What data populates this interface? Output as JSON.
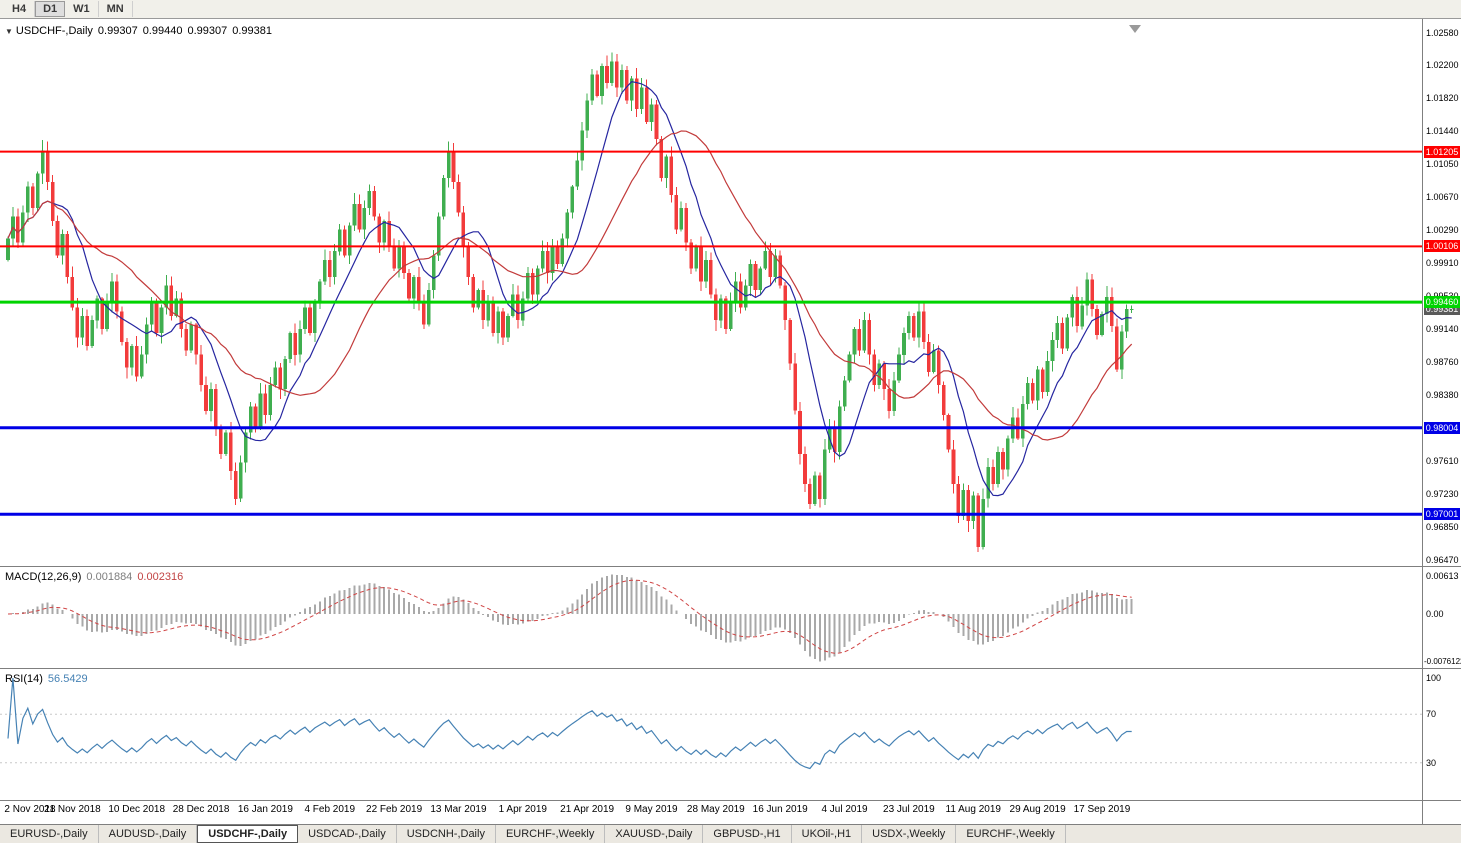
{
  "toolbar": {
    "buttons": [
      "H4",
      "D1",
      "W1",
      "MN"
    ],
    "active": "D1"
  },
  "chart": {
    "collapse_icon": "▼",
    "title": "USDCHF-,Daily",
    "ohlc": {
      "open": "0.99307",
      "high": "0.99440",
      "low": "0.99307",
      "close": "0.99381"
    }
  },
  "price_scale": {
    "ticks": [
      "1.02580",
      "1.02200",
      "1.01820",
      "1.01440",
      "1.01050",
      "1.00670",
      "1.00290",
      "0.99910",
      "0.99530",
      "0.99140",
      "0.98760",
      "0.98380",
      "0.97610",
      "0.97230",
      "0.96850",
      "0.96470"
    ]
  },
  "indicators": {
    "macd": {
      "label": "MACD(12,26,9)",
      "main_value": "0.001884",
      "signal_value": "0.002316",
      "fast": 12,
      "slow": 26,
      "signal": 9,
      "scale_max": "0.00613",
      "scale_zero": "0.00",
      "scale_min": "-0.0076122",
      "histogram_color": "#a9a9a9",
      "signal_color": "#d04545"
    },
    "rsi": {
      "label": "RSI(14)",
      "value": "56.5429",
      "period": 14,
      "levels": [
        70,
        30
      ],
      "scale": [
        "100",
        "70",
        "30"
      ],
      "line_color": "#4682b4"
    }
  },
  "tabs": {
    "items": [
      {
        "label": "EURUSD-,Daily"
      },
      {
        "label": "AUDUSD-,Daily"
      },
      {
        "label": "USDCHF-,Daily",
        "active": true
      },
      {
        "label": "USDCAD-,Daily"
      },
      {
        "label": "USDCNH-,Daily"
      },
      {
        "label": "EURCHF-,Weekly"
      },
      {
        "label": "XAUUSD-,Daily"
      },
      {
        "label": "GBPUSD-,H1"
      },
      {
        "label": "UKOil-,H1"
      },
      {
        "label": "USDX-,Weekly"
      },
      {
        "label": "EURCHF-,Weekly"
      }
    ]
  },
  "colors": {
    "up": "#3fae4f",
    "down": "#f23b3b",
    "background": "#ffffff"
  },
  "chart_data": {
    "type": "candlestick",
    "symbol": "USDCHF",
    "timeframe": "Daily",
    "current_ohlc": {
      "open": 0.99307,
      "high": 0.9944,
      "low": 0.99307,
      "close": 0.99381
    },
    "y_axis": {
      "top": 1.0258,
      "bottom": 0.9647
    },
    "x_labels": [
      "2 Nov 2018",
      "21 Nov 2018",
      "10 Dec 2018",
      "28 Dec 2018",
      "16 Jan 2019",
      "4 Feb 2019",
      "22 Feb 2019",
      "13 Mar 2019",
      "1 Apr 2019",
      "21 Apr 2019",
      "9 May 2019",
      "28 May 2019",
      "16 Jun 2019",
      "4 Jul 2019",
      "23 Jul 2019",
      "11 Aug 2019",
      "29 Aug 2019",
      "17 Sep 2019"
    ],
    "x_label_step": 13,
    "first_open": 0.9995,
    "closes": [
      1.002,
      1.0045,
      1.0015,
      1.005,
      1.008,
      1.0055,
      1.0095,
      1.0122,
      1.0085,
      1.004,
      1.0,
      1.0025,
      0.9975,
      0.994,
      0.9905,
      0.993,
      0.9895,
      0.9925,
      0.995,
      0.9915,
      0.9945,
      0.997,
      0.9935,
      0.99,
      0.987,
      0.9895,
      0.986,
      0.9885,
      0.992,
      0.9945,
      0.991,
      0.994,
      0.9965,
      0.993,
      0.995,
      0.9915,
      0.989,
      0.992,
      0.9885,
      0.985,
      0.982,
      0.9845,
      0.98,
      0.977,
      0.9795,
      0.975,
      0.9718,
      0.976,
      0.9795,
      0.9825,
      0.98,
      0.984,
      0.9815,
      0.985,
      0.987,
      0.9845,
      0.988,
      0.991,
      0.9885,
      0.9915,
      0.994,
      0.991,
      0.9945,
      0.997,
      0.9995,
      0.9975,
      1.0005,
      1.003,
      1.0,
      1.0035,
      1.006,
      1.003,
      1.0055,
      1.0075,
      1.0045,
      1.0015,
      1.004,
      1.001,
      0.9985,
      1.001,
      0.998,
      0.995,
      0.9975,
      0.9945,
      0.992,
      0.996,
      1.0,
      1.0045,
      1.009,
      1.012,
      1.0085,
      1.005,
      1.001,
      0.9975,
      0.994,
      0.996,
      0.9925,
      0.9945,
      0.991,
      0.9935,
      0.9905,
      0.993,
      0.9955,
      0.9925,
      0.995,
      0.998,
      0.9955,
      0.9985,
      1.0005,
      0.998,
      1.001,
      0.999,
      1.002,
      1.005,
      1.008,
      1.011,
      1.0145,
      1.018,
      1.021,
      1.0185,
      1.022,
      1.02,
      1.0225,
      1.0195,
      1.0215,
      1.018,
      1.0205,
      1.017,
      1.0195,
      1.0155,
      1.0175,
      1.0135,
      1.009,
      1.0115,
      1.007,
      1.003,
      1.0055,
      1.0015,
      0.9985,
      1.001,
      0.997,
      0.9995,
      0.9955,
      0.9925,
      0.995,
      0.9915,
      0.9945,
      0.997,
      0.994,
      0.9965,
      0.999,
      0.996,
      0.9985,
      1.0005,
      0.9975,
      1.0,
      0.9965,
      0.9925,
      0.9875,
      0.982,
      0.977,
      0.9735,
      0.9712,
      0.9745,
      0.9718,
      0.9775,
      0.98,
      0.9772,
      0.9825,
      0.9855,
      0.9885,
      0.9915,
      0.989,
      0.9925,
      0.9885,
      0.985,
      0.9875,
      0.9845,
      0.982,
      0.9855,
      0.9885,
      0.991,
      0.993,
      0.9905,
      0.9935,
      0.99,
      0.9865,
      0.989,
      0.985,
      0.9815,
      0.9775,
      0.9735,
      0.9698,
      0.9728,
      0.9692,
      0.9722,
      0.9662,
      0.9718,
      0.9755,
      0.9735,
      0.9772,
      0.9752,
      0.9788,
      0.9812,
      0.9788,
      0.9828,
      0.9852,
      0.9832,
      0.9868,
      0.9842,
      0.9878,
      0.9902,
      0.9922,
      0.9892,
      0.9928,
      0.9952,
      0.9918,
      0.9942,
      0.9972,
      0.9938,
      0.9908,
      0.9932,
      0.9952,
      0.9918,
      0.9868,
      0.9912,
      0.9938,
      0.99381
    ],
    "moving_averages": [
      {
        "name": "MA fast",
        "period": 10,
        "color": "#2626a0"
      },
      {
        "name": "MA slow",
        "period": 25,
        "color": "#c23b3b"
      }
    ],
    "horizontal_lines": [
      {
        "label": "1.01205",
        "price": 1.01205,
        "color": "#ff0000",
        "width": 2
      },
      {
        "label": "1.00106",
        "price": 1.00106,
        "color": "#ff0000",
        "width": 2
      },
      {
        "label": "0.99460",
        "price": 0.9946,
        "color": "#00d400",
        "width": 3
      },
      {
        "label": "0.98004",
        "price": 0.98004,
        "color": "#0000e6",
        "width": 3
      },
      {
        "label": "0.97001",
        "price": 0.97001,
        "color": "#0000e6",
        "width": 3
      }
    ],
    "current_price_marker": {
      "label": "0.99381",
      "price": 0.99381,
      "color": "#5a5a5a"
    }
  }
}
